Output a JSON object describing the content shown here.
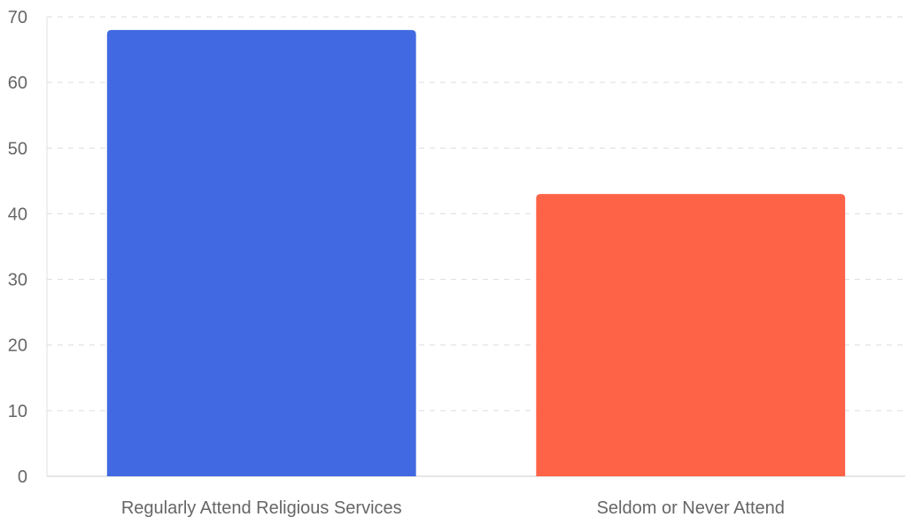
{
  "chart_data": {
    "type": "bar",
    "categories": [
      "Regularly Attend Religious Services",
      "Seldom or Never Attend"
    ],
    "values": [
      68,
      43
    ],
    "colors": [
      "#4169e1",
      "#ff6347"
    ],
    "title": "",
    "xlabel": "",
    "ylabel": "",
    "ylim": [
      0,
      70
    ],
    "yticks": [
      0,
      10,
      20,
      30,
      40,
      50,
      60,
      70
    ],
    "grid": "horizontal-dashed",
    "legend": "none"
  }
}
